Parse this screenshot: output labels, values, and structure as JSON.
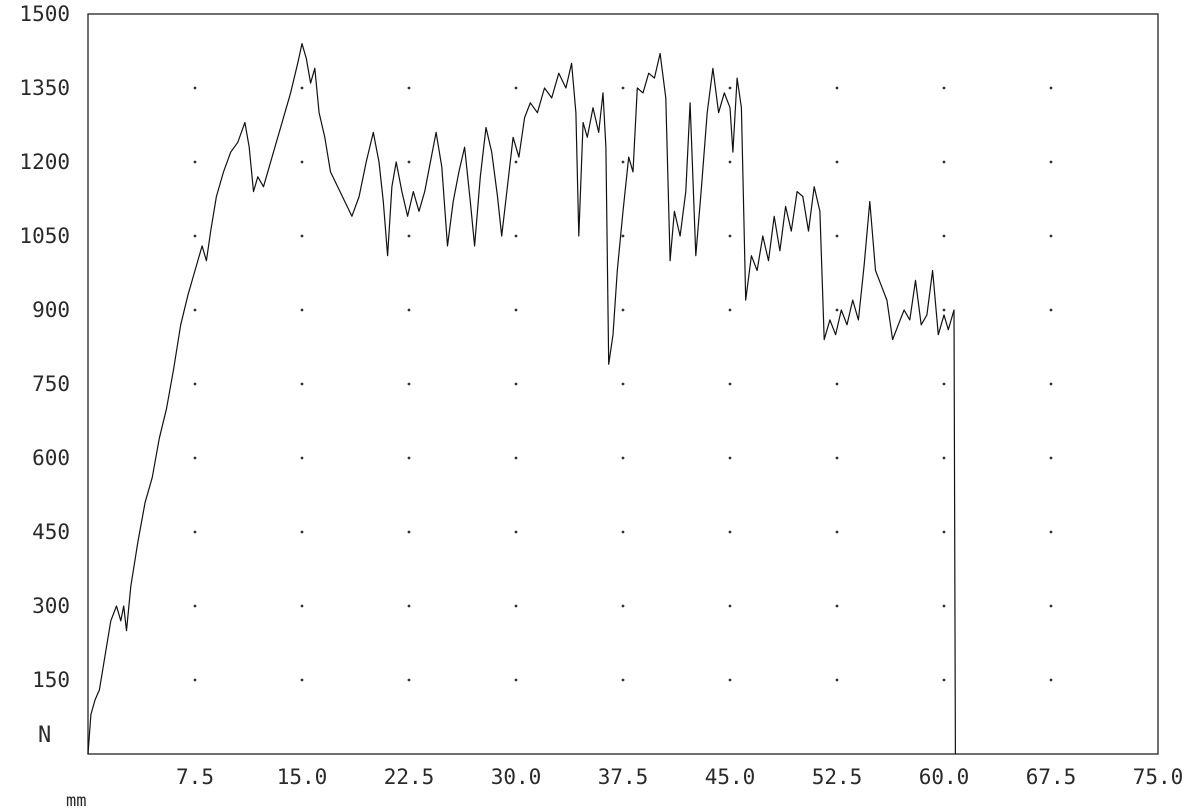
{
  "chart_data": {
    "type": "line",
    "title": "",
    "xlabel": "mm",
    "ylabel": "N",
    "xlim": [
      0,
      75
    ],
    "ylim": [
      0,
      1500
    ],
    "grid": "dots",
    "x_tick_labels": [
      "7.5",
      "15.0",
      "22.5",
      "30.0",
      "37.5",
      "45.0",
      "52.5",
      "60.0",
      "67.5",
      "75.0"
    ],
    "y_tick_labels": [
      "1500",
      "1350",
      "1200",
      "1050",
      "900",
      "750",
      "600",
      "450",
      "300",
      "150"
    ],
    "series": [
      {
        "color": "#111111",
        "points": [
          [
            0.0,
            0
          ],
          [
            0.2,
            80
          ],
          [
            0.5,
            110
          ],
          [
            0.8,
            130
          ],
          [
            1.2,
            200
          ],
          [
            1.6,
            270
          ],
          [
            2.0,
            300
          ],
          [
            2.3,
            270
          ],
          [
            2.5,
            300
          ],
          [
            2.7,
            250
          ],
          [
            3.0,
            340
          ],
          [
            3.5,
            430
          ],
          [
            4.0,
            510
          ],
          [
            4.5,
            560
          ],
          [
            5.0,
            640
          ],
          [
            5.5,
            700
          ],
          [
            6.0,
            780
          ],
          [
            6.5,
            870
          ],
          [
            7.0,
            930
          ],
          [
            7.5,
            980
          ],
          [
            8.0,
            1030
          ],
          [
            8.3,
            1000
          ],
          [
            8.6,
            1060
          ],
          [
            9.0,
            1130
          ],
          [
            9.5,
            1180
          ],
          [
            10.0,
            1220
          ],
          [
            10.5,
            1240
          ],
          [
            11.0,
            1280
          ],
          [
            11.3,
            1230
          ],
          [
            11.6,
            1140
          ],
          [
            11.9,
            1170
          ],
          [
            12.3,
            1150
          ],
          [
            12.7,
            1190
          ],
          [
            13.2,
            1240
          ],
          [
            13.7,
            1290
          ],
          [
            14.2,
            1340
          ],
          [
            14.7,
            1400
          ],
          [
            15.0,
            1440
          ],
          [
            15.3,
            1410
          ],
          [
            15.6,
            1360
          ],
          [
            15.9,
            1390
          ],
          [
            16.2,
            1300
          ],
          [
            16.6,
            1250
          ],
          [
            17.0,
            1180
          ],
          [
            17.5,
            1150
          ],
          [
            18.0,
            1120
          ],
          [
            18.5,
            1090
          ],
          [
            19.0,
            1130
          ],
          [
            19.5,
            1200
          ],
          [
            20.0,
            1260
          ],
          [
            20.4,
            1200
          ],
          [
            20.7,
            1120
          ],
          [
            21.0,
            1010
          ],
          [
            21.3,
            1150
          ],
          [
            21.6,
            1200
          ],
          [
            22.0,
            1140
          ],
          [
            22.4,
            1090
          ],
          [
            22.8,
            1140
          ],
          [
            23.2,
            1100
          ],
          [
            23.6,
            1140
          ],
          [
            24.0,
            1200
          ],
          [
            24.4,
            1260
          ],
          [
            24.8,
            1190
          ],
          [
            25.2,
            1030
          ],
          [
            25.6,
            1120
          ],
          [
            26.0,
            1180
          ],
          [
            26.4,
            1230
          ],
          [
            26.8,
            1120
          ],
          [
            27.1,
            1030
          ],
          [
            27.5,
            1170
          ],
          [
            27.9,
            1270
          ],
          [
            28.3,
            1220
          ],
          [
            28.7,
            1130
          ],
          [
            29.0,
            1050
          ],
          [
            29.4,
            1150
          ],
          [
            29.8,
            1250
          ],
          [
            30.2,
            1210
          ],
          [
            30.6,
            1290
          ],
          [
            31.0,
            1320
          ],
          [
            31.5,
            1300
          ],
          [
            32.0,
            1350
          ],
          [
            32.5,
            1330
          ],
          [
            33.0,
            1380
          ],
          [
            33.5,
            1350
          ],
          [
            33.9,
            1400
          ],
          [
            34.2,
            1300
          ],
          [
            34.4,
            1050
          ],
          [
            34.7,
            1280
          ],
          [
            35.0,
            1250
          ],
          [
            35.4,
            1310
          ],
          [
            35.8,
            1260
          ],
          [
            36.1,
            1340
          ],
          [
            36.3,
            1230
          ],
          [
            36.5,
            790
          ],
          [
            36.8,
            850
          ],
          [
            37.1,
            980
          ],
          [
            37.5,
            1100
          ],
          [
            37.9,
            1210
          ],
          [
            38.2,
            1180
          ],
          [
            38.5,
            1350
          ],
          [
            38.9,
            1340
          ],
          [
            39.3,
            1380
          ],
          [
            39.7,
            1370
          ],
          [
            40.1,
            1420
          ],
          [
            40.5,
            1330
          ],
          [
            40.8,
            1000
          ],
          [
            41.1,
            1100
          ],
          [
            41.5,
            1050
          ],
          [
            41.9,
            1140
          ],
          [
            42.2,
            1320
          ],
          [
            42.6,
            1010
          ],
          [
            43.0,
            1150
          ],
          [
            43.4,
            1300
          ],
          [
            43.8,
            1390
          ],
          [
            44.2,
            1300
          ],
          [
            44.6,
            1340
          ],
          [
            45.0,
            1310
          ],
          [
            45.2,
            1220
          ],
          [
            45.5,
            1370
          ],
          [
            45.8,
            1310
          ],
          [
            46.1,
            920
          ],
          [
            46.5,
            1010
          ],
          [
            46.9,
            980
          ],
          [
            47.3,
            1050
          ],
          [
            47.7,
            1000
          ],
          [
            48.1,
            1090
          ],
          [
            48.5,
            1020
          ],
          [
            48.9,
            1110
          ],
          [
            49.3,
            1060
          ],
          [
            49.7,
            1140
          ],
          [
            50.1,
            1130
          ],
          [
            50.5,
            1060
          ],
          [
            50.9,
            1150
          ],
          [
            51.3,
            1100
          ],
          [
            51.6,
            840
          ],
          [
            52.0,
            880
          ],
          [
            52.4,
            850
          ],
          [
            52.8,
            900
          ],
          [
            53.2,
            870
          ],
          [
            53.6,
            920
          ],
          [
            54.0,
            880
          ],
          [
            54.4,
            990
          ],
          [
            54.8,
            1120
          ],
          [
            55.2,
            980
          ],
          [
            55.6,
            950
          ],
          [
            56.0,
            920
          ],
          [
            56.4,
            840
          ],
          [
            56.8,
            870
          ],
          [
            57.2,
            900
          ],
          [
            57.6,
            880
          ],
          [
            58.0,
            960
          ],
          [
            58.4,
            870
          ],
          [
            58.8,
            890
          ],
          [
            59.2,
            980
          ],
          [
            59.6,
            850
          ],
          [
            60.0,
            890
          ],
          [
            60.3,
            860
          ],
          [
            60.7,
            900
          ],
          [
            60.8,
            0
          ]
        ]
      }
    ]
  }
}
